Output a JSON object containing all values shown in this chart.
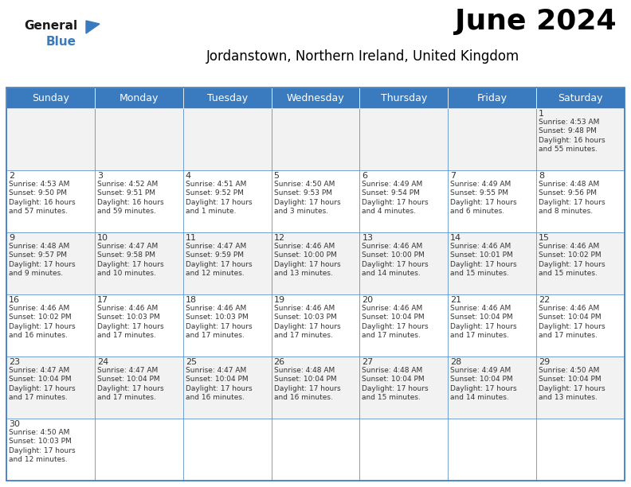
{
  "title": "June 2024",
  "subtitle": "Jordanstown, Northern Ireland, United Kingdom",
  "header_bg": "#3a7abf",
  "header_text_color": "#ffffff",
  "days_of_week": [
    "Sunday",
    "Monday",
    "Tuesday",
    "Wednesday",
    "Thursday",
    "Friday",
    "Saturday"
  ],
  "row0_bg": "#f2f2f2",
  "row1_bg": "#ffffff",
  "row2_bg": "#f2f2f2",
  "row3_bg": "#ffffff",
  "row4_bg": "#f2f2f2",
  "row5_bg": "#ffffff",
  "cell_border_color": "#3a7abf",
  "text_color": "#333333",
  "calendar": [
    [
      "",
      "",
      "",
      "",
      "",
      "",
      "1\nSunrise: 4:53 AM\nSunset: 9:48 PM\nDaylight: 16 hours\nand 55 minutes."
    ],
    [
      "2\nSunrise: 4:53 AM\nSunset: 9:50 PM\nDaylight: 16 hours\nand 57 minutes.",
      "3\nSunrise: 4:52 AM\nSunset: 9:51 PM\nDaylight: 16 hours\nand 59 minutes.",
      "4\nSunrise: 4:51 AM\nSunset: 9:52 PM\nDaylight: 17 hours\nand 1 minute.",
      "5\nSunrise: 4:50 AM\nSunset: 9:53 PM\nDaylight: 17 hours\nand 3 minutes.",
      "6\nSunrise: 4:49 AM\nSunset: 9:54 PM\nDaylight: 17 hours\nand 4 minutes.",
      "7\nSunrise: 4:49 AM\nSunset: 9:55 PM\nDaylight: 17 hours\nand 6 minutes.",
      "8\nSunrise: 4:48 AM\nSunset: 9:56 PM\nDaylight: 17 hours\nand 8 minutes."
    ],
    [
      "9\nSunrise: 4:48 AM\nSunset: 9:57 PM\nDaylight: 17 hours\nand 9 minutes.",
      "10\nSunrise: 4:47 AM\nSunset: 9:58 PM\nDaylight: 17 hours\nand 10 minutes.",
      "11\nSunrise: 4:47 AM\nSunset: 9:59 PM\nDaylight: 17 hours\nand 12 minutes.",
      "12\nSunrise: 4:46 AM\nSunset: 10:00 PM\nDaylight: 17 hours\nand 13 minutes.",
      "13\nSunrise: 4:46 AM\nSunset: 10:00 PM\nDaylight: 17 hours\nand 14 minutes.",
      "14\nSunrise: 4:46 AM\nSunset: 10:01 PM\nDaylight: 17 hours\nand 15 minutes.",
      "15\nSunrise: 4:46 AM\nSunset: 10:02 PM\nDaylight: 17 hours\nand 15 minutes."
    ],
    [
      "16\nSunrise: 4:46 AM\nSunset: 10:02 PM\nDaylight: 17 hours\nand 16 minutes.",
      "17\nSunrise: 4:46 AM\nSunset: 10:03 PM\nDaylight: 17 hours\nand 17 minutes.",
      "18\nSunrise: 4:46 AM\nSunset: 10:03 PM\nDaylight: 17 hours\nand 17 minutes.",
      "19\nSunrise: 4:46 AM\nSunset: 10:03 PM\nDaylight: 17 hours\nand 17 minutes.",
      "20\nSunrise: 4:46 AM\nSunset: 10:04 PM\nDaylight: 17 hours\nand 17 minutes.",
      "21\nSunrise: 4:46 AM\nSunset: 10:04 PM\nDaylight: 17 hours\nand 17 minutes.",
      "22\nSunrise: 4:46 AM\nSunset: 10:04 PM\nDaylight: 17 hours\nand 17 minutes."
    ],
    [
      "23\nSunrise: 4:47 AM\nSunset: 10:04 PM\nDaylight: 17 hours\nand 17 minutes.",
      "24\nSunrise: 4:47 AM\nSunset: 10:04 PM\nDaylight: 17 hours\nand 17 minutes.",
      "25\nSunrise: 4:47 AM\nSunset: 10:04 PM\nDaylight: 17 hours\nand 16 minutes.",
      "26\nSunrise: 4:48 AM\nSunset: 10:04 PM\nDaylight: 17 hours\nand 16 minutes.",
      "27\nSunrise: 4:48 AM\nSunset: 10:04 PM\nDaylight: 17 hours\nand 15 minutes.",
      "28\nSunrise: 4:49 AM\nSunset: 10:04 PM\nDaylight: 17 hours\nand 14 minutes.",
      "29\nSunrise: 4:50 AM\nSunset: 10:04 PM\nDaylight: 17 hours\nand 13 minutes."
    ],
    [
      "30\nSunrise: 4:50 AM\nSunset: 10:03 PM\nDaylight: 17 hours\nand 12 minutes.",
      "",
      "",
      "",
      "",
      "",
      ""
    ]
  ],
  "title_fontsize": 26,
  "subtitle_fontsize": 12,
  "header_fontsize": 9,
  "day_num_fontsize": 8,
  "cell_text_fontsize": 6.5
}
